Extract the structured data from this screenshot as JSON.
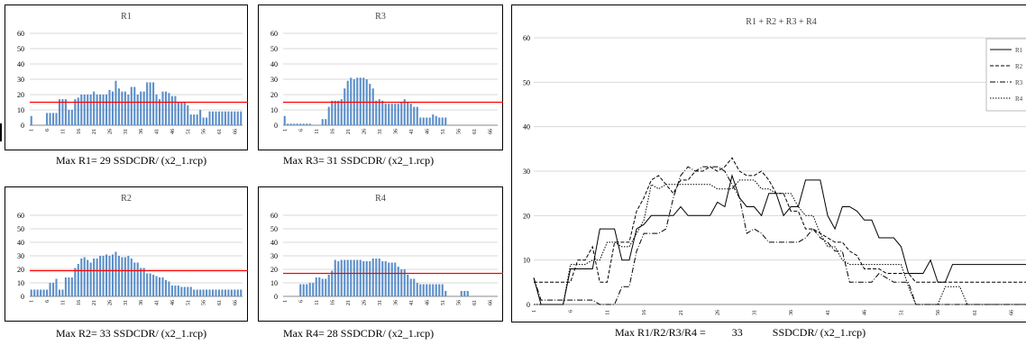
{
  "colors": {
    "bar": "#5b8fc9",
    "refline": "#ff0000",
    "frame": "#000000",
    "grid": "#d9d9d9"
  },
  "chart_data": [
    {
      "type": "bar",
      "title": "R1",
      "ylim": [
        0,
        60
      ],
      "yticks": [
        0,
        10,
        20,
        30,
        40,
        50,
        60
      ],
      "xtick_labels": [
        "1",
        "6",
        "11",
        "16",
        "21",
        "26",
        "31",
        "36",
        "41",
        "46",
        "51",
        "56",
        "61",
        "66"
      ],
      "reference_line": 15,
      "values": [
        6,
        0,
        0,
        0,
        0,
        8,
        8,
        8,
        8,
        17,
        17,
        17,
        10,
        10,
        17,
        18,
        20,
        20,
        20,
        20,
        22,
        20,
        20,
        20,
        20,
        23,
        22,
        29,
        24,
        22,
        22,
        20,
        25,
        25,
        20,
        22,
        22,
        28,
        28,
        28,
        20,
        17,
        22,
        22,
        21,
        19,
        19,
        15,
        15,
        15,
        13,
        7,
        7,
        7,
        10,
        5,
        5,
        9,
        9,
        9,
        9,
        9,
        9,
        9,
        9,
        9,
        9,
        9
      ]
    },
    {
      "type": "bar",
      "title": "R3",
      "ylim": [
        0,
        60
      ],
      "yticks": [
        0,
        10,
        20,
        30,
        40,
        50,
        60
      ],
      "xtick_labels": [
        "1",
        "6",
        "11",
        "16",
        "21",
        "26",
        "31",
        "36",
        "41",
        "46",
        "51",
        "56",
        "61",
        "66"
      ],
      "reference_line": 15,
      "values": [
        6,
        1,
        1,
        1,
        1,
        1,
        1,
        1,
        1,
        0,
        0,
        0,
        4,
        4,
        12,
        16,
        16,
        16,
        17,
        24,
        29,
        31,
        30,
        31,
        31,
        31,
        30,
        27,
        24,
        16,
        17,
        16,
        14,
        14,
        14,
        14,
        14,
        15,
        17,
        15,
        14,
        12,
        12,
        5,
        5,
        5,
        5,
        7,
        6,
        5,
        5,
        5,
        0,
        0,
        0,
        0,
        0,
        0,
        0,
        0,
        0,
        0,
        0,
        0,
        0,
        0,
        0,
        0
      ]
    },
    {
      "type": "bar",
      "title": "R2",
      "ylim": [
        0,
        60
      ],
      "yticks": [
        0,
        10,
        20,
        30,
        40,
        50,
        60
      ],
      "xtick_labels": [
        "1",
        "6",
        "11",
        "16",
        "21",
        "26",
        "31",
        "36",
        "41",
        "46",
        "51",
        "56",
        "61",
        "66"
      ],
      "reference_line": 19,
      "values": [
        5,
        5,
        5,
        5,
        5,
        5,
        10,
        10,
        13,
        5,
        5,
        14,
        14,
        14,
        21,
        24,
        28,
        29,
        27,
        25,
        28,
        28,
        30,
        30,
        31,
        30,
        31,
        33,
        30,
        29,
        29,
        30,
        28,
        25,
        25,
        21,
        21,
        17,
        17,
        16,
        15,
        14,
        14,
        12,
        11,
        8,
        8,
        8,
        7,
        7,
        7,
        7,
        5,
        5,
        5,
        5,
        5,
        5,
        5,
        5,
        5,
        5,
        5,
        5,
        5,
        5,
        5,
        5
      ]
    },
    {
      "type": "bar",
      "title": "R4",
      "ylim": [
        0,
        60
      ],
      "yticks": [
        0,
        10,
        20,
        30,
        40,
        50,
        60
      ],
      "xtick_labels": [
        "1",
        "6",
        "11",
        "16",
        "21",
        "26",
        "31",
        "36",
        "41",
        "46",
        "51",
        "56",
        "61",
        "66"
      ],
      "reference_line": 17,
      "values": [
        0,
        0,
        0,
        0,
        0,
        9,
        9,
        9,
        10,
        10,
        14,
        14,
        13,
        13,
        16,
        19,
        27,
        26,
        27,
        27,
        27,
        27,
        27,
        27,
        27,
        26,
        26,
        26,
        28,
        28,
        28,
        26,
        26,
        25,
        25,
        25,
        22,
        20,
        20,
        16,
        13,
        13,
        10,
        9,
        9,
        9,
        9,
        9,
        9,
        9,
        9,
        4,
        0,
        0,
        0,
        0,
        4,
        4,
        4,
        0,
        0,
        0,
        0,
        0,
        0,
        0,
        0,
        0
      ]
    },
    {
      "type": "line",
      "title": "R1 + R2 + R3 + R4",
      "ylim": [
        0,
        60
      ],
      "yticks": [
        0,
        10,
        20,
        30,
        40,
        50,
        60
      ],
      "xtick_labels": [
        "1",
        "6",
        "11",
        "16",
        "21",
        "26",
        "31",
        "36",
        "41",
        "46",
        "51",
        "56",
        "61",
        "66"
      ],
      "legend": "top-right",
      "series": [
        {
          "name": "R1",
          "dash": "solid"
        },
        {
          "name": "R2",
          "dash": "dashed"
        },
        {
          "name": "R3",
          "dash": "dashdot"
        },
        {
          "name": "R4",
          "dash": "dotted"
        }
      ]
    }
  ],
  "captions": {
    "r1": "Max R1= 29 SSDCDR/ (x2_1.rcp)",
    "r3": "Max R3= 31 SSDCDR/ (x2_1.rcp)",
    "r2": "Max R2= 33 SSDCDR/ (x2_1.rcp)",
    "r4": "Max R4= 28 SSDCDR/ (x2_1.rcp)",
    "combined_prefix": "Max R1/R2/R3/R4 =",
    "combined_value": "33",
    "combined_suffix": "SSDCDR/ (x2_1.rcp)"
  }
}
